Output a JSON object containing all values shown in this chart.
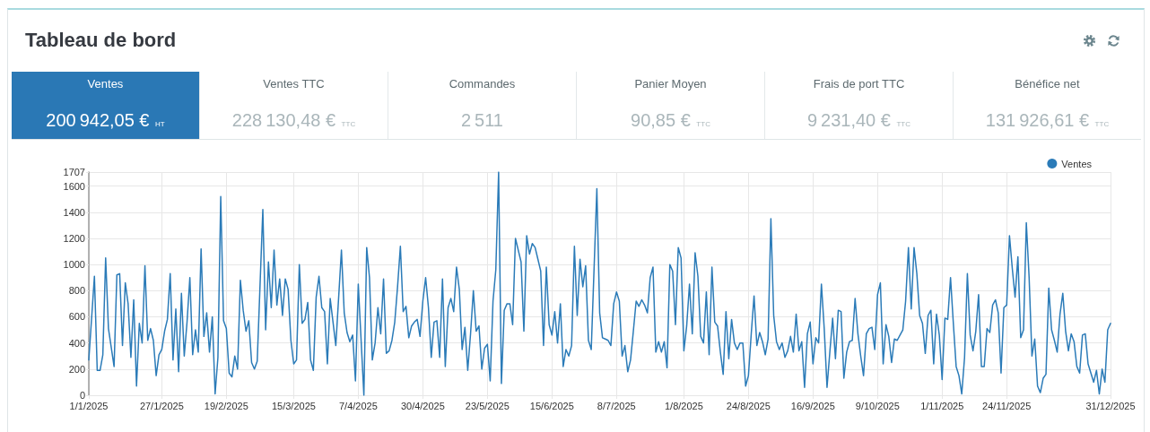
{
  "chart_data": [
    {
      "type": "other",
      "title": "Tableau de bord",
      "categories": [
        "Ventes",
        "Ventes TTC",
        "Commandes",
        "Panier Moyen",
        "Frais de port TTC",
        "Bénéfice net"
      ],
      "value_labels": [
        "200 942,05 € HT",
        "228 130,48 € TTC",
        "2 511",
        "90,85 € TTC",
        "9 231,40 € TTC",
        "131 926,61 € TTC"
      ],
      "colors": [
        "#2a78b5",
        "#ffffff",
        "#ffffff",
        "#ffffff",
        "#ffffff",
        "#ffffff"
      ]
    },
    {
      "type": "line",
      "x": [
        "2025-01-01",
        "2025-01-03",
        "2025-01-04",
        "2025-01-05",
        "2025-01-06",
        "2025-01-07",
        "2025-01-08",
        "2025-01-10",
        "2025-01-11",
        "2025-01-12",
        "2025-01-13",
        "2025-01-14",
        "2025-01-15",
        "2025-01-16",
        "2025-01-17",
        "2025-01-18",
        "2025-01-19",
        "2025-01-20",
        "2025-01-21",
        "2025-01-22",
        "2025-01-23",
        "2025-01-24",
        "2025-01-25",
        "2025-01-26",
        "2025-01-27",
        "2025-01-28",
        "2025-01-29",
        "2025-01-30",
        "2025-01-31",
        "2025-02-01",
        "2025-02-02",
        "2025-02-03",
        "2025-02-04",
        "2025-02-05",
        "2025-02-06",
        "2025-02-07",
        "2025-02-08",
        "2025-02-09",
        "2025-02-10",
        "2025-02-11",
        "2025-02-12",
        "2025-02-13",
        "2025-02-14",
        "2025-02-15",
        "2025-02-16",
        "2025-02-17",
        "2025-02-18",
        "2025-02-19",
        "2025-02-20",
        "2025-02-21",
        "2025-02-22",
        "2025-02-23",
        "2025-02-24",
        "2025-02-25",
        "2025-02-26",
        "2025-02-27",
        "2025-02-28",
        "2025-03-01",
        "2025-03-02",
        "2025-03-04",
        "2025-03-05",
        "2025-03-06",
        "2025-03-07",
        "2025-03-08",
        "2025-03-09",
        "2025-03-10",
        "2025-03-11",
        "2025-03-12",
        "2025-03-13",
        "2025-03-14",
        "2025-03-15",
        "2025-03-16",
        "2025-03-17",
        "2025-03-18",
        "2025-03-19",
        "2025-03-20",
        "2025-03-21",
        "2025-03-22",
        "2025-03-23",
        "2025-03-24",
        "2025-03-25",
        "2025-03-26",
        "2025-03-27",
        "2025-03-28",
        "2025-03-29",
        "2025-03-30",
        "2025-04-01",
        "2025-04-02",
        "2025-04-03",
        "2025-04-04",
        "2025-04-05",
        "2025-04-06",
        "2025-04-07",
        "2025-04-09",
        "2025-04-10",
        "2025-04-11",
        "2025-04-12",
        "2025-04-13",
        "2025-04-14",
        "2025-04-15",
        "2025-04-16",
        "2025-04-17",
        "2025-04-18",
        "2025-04-19",
        "2025-04-20",
        "2025-04-21",
        "2025-04-22",
        "2025-04-23",
        "2025-04-24",
        "2025-04-25",
        "2025-04-26",
        "2025-04-27",
        "2025-04-28",
        "2025-04-29",
        "2025-04-30",
        "2025-05-01",
        "2025-05-02",
        "2025-05-03",
        "2025-05-04",
        "2025-05-05",
        "2025-05-06",
        "2025-05-07",
        "2025-05-08",
        "2025-05-09",
        "2025-05-10",
        "2025-05-11",
        "2025-05-12",
        "2025-05-13",
        "2025-05-14",
        "2025-05-15",
        "2025-05-16",
        "2025-05-17",
        "2025-05-18",
        "2025-05-19",
        "2025-05-20",
        "2025-05-21",
        "2025-05-22",
        "2025-05-23",
        "2025-05-24",
        "2025-05-25",
        "2025-05-26",
        "2025-05-27",
        "2025-05-28",
        "2025-05-29",
        "2025-05-30",
        "2025-05-31",
        "2025-06-01",
        "2025-06-02",
        "2025-06-03",
        "2025-06-04",
        "2025-06-05",
        "2025-06-06",
        "2025-06-07",
        "2025-06-08",
        "2025-06-09",
        "2025-06-10",
        "2025-06-11",
        "2025-06-12",
        "2025-06-13",
        "2025-06-14",
        "2025-06-15",
        "2025-06-16",
        "2025-06-17",
        "2025-06-18",
        "2025-06-19",
        "2025-06-20",
        "2025-06-21",
        "2025-06-22",
        "2025-06-23",
        "2025-06-24",
        "2025-06-25",
        "2025-06-26",
        "2025-06-27",
        "2025-06-28",
        "2025-06-29",
        "2025-07-01",
        "2025-07-02",
        "2025-07-03",
        "2025-07-04",
        "2025-07-05",
        "2025-07-06",
        "2025-07-07",
        "2025-07-08",
        "2025-07-09",
        "2025-07-10",
        "2025-07-11",
        "2025-07-12",
        "2025-07-13",
        "2025-07-14",
        "2025-07-15",
        "2025-07-16",
        "2025-07-17",
        "2025-07-18",
        "2025-07-19",
        "2025-07-20",
        "2025-07-21",
        "2025-07-22",
        "2025-07-23",
        "2025-07-24",
        "2025-07-25",
        "2025-07-26",
        "2025-07-27",
        "2025-07-28",
        "2025-07-29",
        "2025-07-30",
        "2025-07-31",
        "2025-08-01",
        "2025-08-02",
        "2025-08-03",
        "2025-08-04",
        "2025-08-05",
        "2025-08-06",
        "2025-08-07",
        "2025-08-08",
        "2025-08-09",
        "2025-08-10",
        "2025-08-11",
        "2025-08-12",
        "2025-08-13",
        "2025-08-14",
        "2025-08-15",
        "2025-08-16",
        "2025-08-17",
        "2025-08-18",
        "2025-08-19",
        "2025-08-20",
        "2025-08-21",
        "2025-08-22",
        "2025-08-23",
        "2025-08-24",
        "2025-08-25",
        "2025-08-26",
        "2025-08-27",
        "2025-08-28",
        "2025-08-29",
        "2025-08-30",
        "2025-08-31",
        "2025-09-01",
        "2025-09-02",
        "2025-09-03",
        "2025-09-04",
        "2025-09-05",
        "2025-09-06",
        "2025-09-07",
        "2025-09-08",
        "2025-09-09",
        "2025-09-10",
        "2025-09-11",
        "2025-09-12",
        "2025-09-13",
        "2025-09-14",
        "2025-09-15",
        "2025-09-16",
        "2025-09-17",
        "2025-09-18",
        "2025-09-19",
        "2025-09-20",
        "2025-09-21",
        "2025-09-22",
        "2025-09-23",
        "2025-09-24",
        "2025-09-25",
        "2025-09-26",
        "2025-09-27",
        "2025-09-28",
        "2025-09-29",
        "2025-09-30",
        "2025-10-01",
        "2025-10-02",
        "2025-10-03",
        "2025-10-04",
        "2025-10-05",
        "2025-10-06",
        "2025-10-07",
        "2025-10-08",
        "2025-10-09",
        "2025-10-10",
        "2025-10-11",
        "2025-10-12",
        "2025-10-13",
        "2025-10-14",
        "2025-10-15",
        "2025-10-16",
        "2025-10-17",
        "2025-10-18",
        "2025-10-19",
        "2025-10-20",
        "2025-10-21",
        "2025-10-22",
        "2025-10-23",
        "2025-10-24",
        "2025-10-25",
        "2025-10-26",
        "2025-10-27",
        "2025-10-28",
        "2025-10-29",
        "2025-10-30",
        "2025-10-31",
        "2025-11-01",
        "2025-11-02",
        "2025-11-03",
        "2025-11-04",
        "2025-11-05",
        "2025-11-06",
        "2025-11-07",
        "2025-11-08",
        "2025-11-09",
        "2025-11-10",
        "2025-11-11",
        "2025-11-12",
        "2025-11-13",
        "2025-11-14",
        "2025-11-15",
        "2025-11-16",
        "2025-11-17",
        "2025-11-18",
        "2025-11-19",
        "2025-11-20",
        "2025-11-21",
        "2025-11-22",
        "2025-11-23",
        "2025-11-24",
        "2025-11-25",
        "2025-11-26",
        "2025-11-27",
        "2025-11-28",
        "2025-11-29",
        "2025-11-30",
        "2025-12-01",
        "2025-12-02",
        "2025-12-03",
        "2025-12-04",
        "2025-12-05",
        "2025-12-06",
        "2025-12-07",
        "2025-12-08",
        "2025-12-09",
        "2025-12-10",
        "2025-12-11",
        "2025-12-12",
        "2025-12-13",
        "2025-12-14",
        "2025-12-15",
        "2025-12-16",
        "2025-12-17",
        "2025-12-18",
        "2025-12-19",
        "2025-12-20",
        "2025-12-21",
        "2025-12-22",
        "2025-12-23",
        "2025-12-24",
        "2025-12-25",
        "2025-12-26",
        "2025-12-27",
        "2025-12-28",
        "2025-12-29",
        "2025-12-30",
        "2025-12-31"
      ],
      "series": [
        {
          "name": "Ventes",
          "color": "#2b7bb8",
          "values": [
            270,
            910,
            190,
            190,
            310,
            1050,
            510,
            220,
            920,
            930,
            380,
            860,
            700,
            290,
            730,
            70,
            550,
            400,
            990,
            420,
            510,
            420,
            150,
            310,
            350,
            490,
            580,
            930,
            270,
            660,
            180,
            780,
            300,
            560,
            900,
            310,
            500,
            330,
            1120,
            450,
            630,
            330,
            600,
            10,
            290,
            1520,
            570,
            510,
            170,
            140,
            300,
            200,
            880,
            650,
            490,
            570,
            250,
            200,
            260,
            1420,
            500,
            1020,
            670,
            1110,
            690,
            890,
            610,
            890,
            810,
            420,
            240,
            270,
            1000,
            550,
            580,
            710,
            270,
            190,
            750,
            910,
            670,
            640,
            240,
            740,
            560,
            380,
            1110,
            630,
            480,
            410,
            460,
            110,
            850,
            0,
            1130,
            900,
            270,
            400,
            670,
            470,
            890,
            320,
            340,
            420,
            560,
            830,
            1140,
            640,
            680,
            440,
            530,
            560,
            580,
            450,
            720,
            900,
            670,
            290,
            560,
            570,
            290,
            890,
            220,
            670,
            740,
            640,
            980,
            810,
            350,
            520,
            190,
            470,
            800,
            490,
            530,
            200,
            360,
            390,
            110,
            720,
            960,
            1707,
            90,
            650,
            700,
            700,
            540,
            1200,
            1110,
            1020,
            490,
            1220,
            1080,
            1160,
            1130,
            1040,
            950,
            380,
            980,
            540,
            460,
            640,
            400,
            700,
            220,
            350,
            300,
            380,
            1140,
            610,
            1040,
            830,
            990,
            420,
            350,
            1580,
            630,
            440,
            430,
            420,
            380,
            700,
            790,
            720,
            300,
            380,
            180,
            270,
            490,
            720,
            680,
            730,
            690,
            630,
            900,
            980,
            330,
            410,
            330,
            410,
            210,
            1000,
            950,
            540,
            1130,
            1050,
            340,
            530,
            850,
            470,
            1090,
            910,
            450,
            400,
            790,
            310,
            980,
            560,
            530,
            330,
            160,
            640,
            280,
            580,
            400,
            350,
            400,
            400,
            70,
            150,
            470,
            760,
            380,
            480,
            410,
            310,
            430,
            1350,
            610,
            410,
            350,
            400,
            290,
            340,
            450,
            330,
            620,
            340,
            410,
            60,
            470,
            560,
            240,
            440,
            400,
            850,
            510,
            60,
            330,
            590,
            280,
            650,
            640,
            130,
            330,
            410,
            420,
            740,
            470,
            300,
            150,
            470,
            510,
            520,
            350,
            770,
            860,
            240,
            540,
            450,
            250,
            430,
            420,
            460,
            500,
            720,
            1130,
            660,
            1130,
            930,
            610,
            550,
            320,
            610,
            650,
            240,
            620,
            460,
            120,
            590,
            580,
            900,
            550,
            220,
            150,
            10,
            290,
            930,
            460,
            340,
            490,
            770,
            220,
            220,
            510,
            480,
            690,
            730,
            630,
            170,
            670,
            690,
            1220,
            970,
            750,
            1060,
            440,
            500,
            1320,
            900,
            300,
            430,
            70,
            20,
            130,
            160,
            820,
            500,
            420,
            330,
            620,
            780,
            490,
            340,
            470,
            410,
            220,
            170,
            460,
            470,
            240,
            170,
            100,
            190,
            10,
            200,
            100,
            500,
            550
          ]
        }
      ],
      "xlim": [
        "2025-01-01",
        "2025-12-31"
      ],
      "xticks": [
        {
          "value": "2025-01-01",
          "label": "1/1/2025"
        },
        {
          "value": "2025-01-27",
          "label": "27/1/2025"
        },
        {
          "value": "2025-02-19",
          "label": "19/2/2025"
        },
        {
          "value": "2025-03-15",
          "label": "15/3/2025"
        },
        {
          "value": "2025-04-07",
          "label": "7/4/2025"
        },
        {
          "value": "2025-04-30",
          "label": "30/4/2025"
        },
        {
          "value": "2025-05-23",
          "label": "23/5/2025"
        },
        {
          "value": "2025-06-15",
          "label": "15/6/2025"
        },
        {
          "value": "2025-07-08",
          "label": "8/7/2025"
        },
        {
          "value": "2025-08-01",
          "label": "1/8/2025"
        },
        {
          "value": "2025-08-24",
          "label": "24/8/2025"
        },
        {
          "value": "2025-09-16",
          "label": "16/9/2025"
        },
        {
          "value": "2025-10-09",
          "label": "9/10/2025"
        },
        {
          "value": "2025-11-01",
          "label": "1/11/2025"
        },
        {
          "value": "2025-11-24",
          "label": "24/11/2025"
        },
        {
          "value": "2025-12-31",
          "label": "31/12/2025"
        }
      ],
      "ylim": [
        0,
        1707
      ],
      "yticks": [
        0,
        200,
        400,
        600,
        800,
        1000,
        1200,
        1400,
        1600,
        1707
      ],
      "grid": true,
      "legend": "top right",
      "marker": "none"
    }
  ]
}
